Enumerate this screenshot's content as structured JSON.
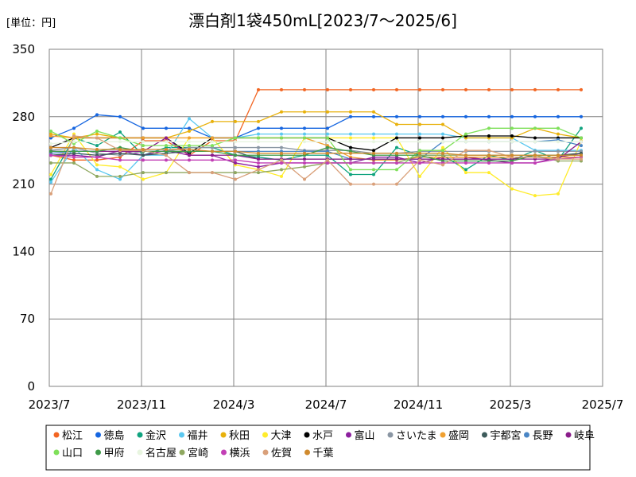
{
  "chart_data": {
    "type": "line",
    "title": "漂白剤1袋450mL[2023/7〜2025/6]",
    "unit_label": "[単位：円]",
    "xlabel": "",
    "ylabel": "",
    "ylim": [
      0,
      350
    ],
    "yticks": [
      0,
      70,
      140,
      210,
      280,
      350
    ],
    "xticks": [
      "2023/7",
      "2023/11",
      "2024/3",
      "2024/7",
      "2024/11",
      "2025/3",
      "2025/7"
    ],
    "x": [
      "2023/7",
      "2023/8",
      "2023/9",
      "2023/10",
      "2023/11",
      "2023/12",
      "2024/1",
      "2024/2",
      "2024/3",
      "2024/4",
      "2024/5",
      "2024/6",
      "2024/7",
      "2024/8",
      "2024/9",
      "2024/10",
      "2024/11",
      "2024/12",
      "2025/1",
      "2025/2",
      "2025/3",
      "2025/4",
      "2025/5",
      "2025/6"
    ],
    "grid": true,
    "legend_position": "bottom",
    "series": [
      {
        "name": "松江",
        "color": "#f26522",
        "values": [
          240,
          235,
          235,
          238,
          255,
          255,
          240,
          255,
          255,
          308,
          308,
          308,
          308,
          308,
          308,
          308,
          308,
          308,
          308,
          308,
          308,
          308,
          308,
          308
        ]
      },
      {
        "name": "徳島",
        "color": "#1565e0",
        "values": [
          258,
          268,
          282,
          280,
          268,
          268,
          268,
          258,
          258,
          268,
          268,
          268,
          268,
          280,
          280,
          280,
          280,
          280,
          280,
          280,
          280,
          280,
          280,
          280
        ]
      },
      {
        "name": "金沢",
        "color": "#10a37f",
        "values": [
          215,
          258,
          250,
          264,
          240,
          248,
          248,
          248,
          240,
          238,
          235,
          240,
          240,
          220,
          220,
          248,
          240,
          240,
          225,
          240,
          235,
          245,
          235,
          268
        ]
      },
      {
        "name": "福井",
        "color": "#5bc8f0",
        "values": [
          212,
          248,
          225,
          215,
          240,
          240,
          278,
          258,
          258,
          262,
          262,
          262,
          262,
          262,
          262,
          262,
          262,
          262,
          258,
          258,
          258,
          245,
          245,
          245
        ]
      },
      {
        "name": "秋田",
        "color": "#e8b10c",
        "values": [
          262,
          258,
          262,
          258,
          258,
          258,
          265,
          275,
          275,
          275,
          285,
          285,
          285,
          285,
          285,
          272,
          272,
          272,
          258,
          258,
          258,
          268,
          262,
          258
        ]
      },
      {
        "name": "大津",
        "color": "#ffec2b",
        "values": [
          220,
          262,
          230,
          228,
          215,
          222,
          258,
          258,
          230,
          225,
          218,
          258,
          258,
          258,
          258,
          258,
          218,
          248,
          222,
          222,
          205,
          198,
          200,
          255
        ]
      },
      {
        "name": "水戸",
        "color": "#000000",
        "values": [
          248,
          258,
          258,
          258,
          258,
          258,
          242,
          258,
          258,
          258,
          258,
          258,
          258,
          248,
          245,
          258,
          258,
          258,
          260,
          260,
          260,
          258,
          258,
          258
        ]
      },
      {
        "name": "富山",
        "color": "#8c1f9e",
        "values": [
          240,
          240,
          238,
          245,
          240,
          245,
          240,
          240,
          232,
          228,
          232,
          232,
          232,
          232,
          238,
          238,
          232,
          238,
          238,
          235,
          232,
          232,
          238,
          242
        ]
      },
      {
        "name": "さいたま",
        "color": "#8a96a3",
        "values": [
          245,
          248,
          242,
          240,
          244,
          244,
          248,
          248,
          248,
          248,
          248,
          245,
          245,
          245,
          242,
          242,
          244,
          244,
          244,
          244,
          244,
          244,
          244,
          244
        ]
      },
      {
        "name": "盛岡",
        "color": "#f0a030",
        "values": [
          260,
          258,
          258,
          258,
          258,
          258,
          258,
          258,
          258,
          258,
          258,
          258,
          250,
          238,
          235,
          235,
          238,
          238,
          238,
          238,
          238,
          238,
          238,
          238
        ]
      },
      {
        "name": "宇都宮",
        "color": "#3d5b5b",
        "values": [
          240,
          242,
          240,
          242,
          240,
          242,
          244,
          244,
          244,
          236,
          236,
          236,
          236,
          236,
          236,
          236,
          236,
          236,
          236,
          236,
          236,
          240,
          240,
          242
        ]
      },
      {
        "name": "長野",
        "color": "#4a86c5",
        "values": [
          242,
          244,
          244,
          244,
          244,
          244,
          244,
          244,
          244,
          244,
          244,
          244,
          244,
          236,
          236,
          236,
          236,
          254,
          254,
          254,
          254,
          254,
          256,
          250
        ]
      },
      {
        "name": "岐阜",
        "color": "#8a1d8a",
        "values": [
          244,
          244,
          244,
          244,
          244,
          258,
          240,
          240,
          240,
          236,
          236,
          236,
          236,
          236,
          236,
          236,
          236,
          236,
          236,
          236,
          236,
          236,
          236,
          254
        ]
      },
      {
        "name": "山口",
        "color": "#7fe05a",
        "values": [
          265,
          252,
          265,
          258,
          250,
          250,
          250,
          250,
          258,
          258,
          258,
          258,
          258,
          225,
          225,
          225,
          245,
          245,
          262,
          268,
          268,
          268,
          268,
          258
        ]
      },
      {
        "name": "甲府",
        "color": "#3e9a48",
        "values": [
          244,
          244,
          244,
          248,
          244,
          244,
          244,
          244,
          240,
          240,
          240,
          240,
          248,
          244,
          240,
          240,
          240,
          234,
          234,
          234,
          234,
          240,
          240,
          240
        ]
      },
      {
        "name": "名古屋",
        "color": "#e8f5e0",
        "values": [
          252,
          254,
          254,
          254,
          254,
          254,
          254,
          254,
          254,
          254,
          254,
          254,
          254,
          254,
          254,
          254,
          254,
          254,
          254,
          254,
          254,
          254,
          254,
          254
        ]
      },
      {
        "name": "宮崎",
        "color": "#8fa860",
        "values": [
          232,
          232,
          218,
          218,
          222,
          222,
          222,
          222,
          222,
          222,
          225,
          228,
          232,
          232,
          232,
          232,
          240,
          240,
          240,
          240,
          240,
          240,
          234,
          234
        ]
      },
      {
        "name": "横浜",
        "color": "#c23fb5",
        "values": [
          240,
          238,
          238,
          235,
          235,
          235,
          235,
          235,
          235,
          232,
          232,
          232,
          232,
          232,
          232,
          232,
          232,
          232,
          232,
          232,
          232,
          232,
          236,
          238
        ]
      },
      {
        "name": "佐賀",
        "color": "#d9a07a",
        "values": [
          200,
          260,
          258,
          245,
          245,
          240,
          222,
          222,
          215,
          225,
          235,
          215,
          235,
          210,
          210,
          210,
          235,
          230,
          245,
          245,
          238,
          238,
          236,
          236
        ]
      },
      {
        "name": "千葉",
        "color": "#d08a2e",
        "values": [
          248,
          248,
          246,
          246,
          246,
          246,
          246,
          244,
          244,
          242,
          242,
          242,
          242,
          242,
          242,
          242,
          242,
          242,
          240,
          240,
          240,
          240,
          240,
          240
        ]
      }
    ]
  }
}
